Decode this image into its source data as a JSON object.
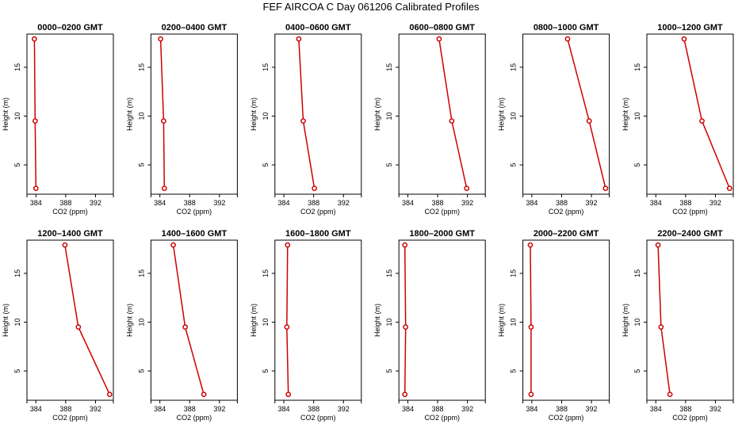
{
  "page_title": "FEF AIRCOA C  Day 061206  Calibrated Profiles",
  "colors": {
    "profile_line": "#cc0000",
    "axis": "#000000",
    "background": "#ffffff"
  },
  "chart_data": [
    {
      "type": "line",
      "title": "0000–0200 GMT",
      "xlabel": "CO2 (ppm)",
      "ylabel": "Height (m)",
      "xlim": [
        382.8,
        394.4
      ],
      "ylim": [
        2.0,
        18.4
      ],
      "xticks": [
        384,
        388,
        392
      ],
      "yticks": [
        5,
        10,
        15
      ],
      "series": [
        {
          "x": [
            383.8,
            383.9,
            384.0
          ],
          "y": [
            17.9,
            9.5,
            2.6
          ]
        }
      ]
    },
    {
      "type": "line",
      "title": "0200–0400 GMT",
      "xlabel": "CO2 (ppm)",
      "ylabel": "Height (m)",
      "xlim": [
        382.8,
        394.4
      ],
      "ylim": [
        2.0,
        18.4
      ],
      "xticks": [
        384,
        388,
        392
      ],
      "yticks": [
        5,
        10,
        15
      ],
      "series": [
        {
          "x": [
            384.1,
            384.5,
            384.6
          ],
          "y": [
            17.9,
            9.5,
            2.6
          ]
        }
      ]
    },
    {
      "type": "line",
      "title": "0400–0600 GMT",
      "xlabel": "CO2 (ppm)",
      "ylabel": "Height (m)",
      "xlim": [
        382.8,
        394.4
      ],
      "ylim": [
        2.0,
        18.4
      ],
      "xticks": [
        384,
        388,
        392
      ],
      "yticks": [
        5,
        10,
        15
      ],
      "series": [
        {
          "x": [
            386.0,
            386.6,
            388.1
          ],
          "y": [
            17.9,
            9.5,
            2.6
          ]
        }
      ]
    },
    {
      "type": "line",
      "title": "0600–0800 GMT",
      "xlabel": "CO2 (ppm)",
      "ylabel": "Height (m)",
      "xlim": [
        382.8,
        394.4
      ],
      "ylim": [
        2.0,
        18.4
      ],
      "xticks": [
        384,
        388,
        392
      ],
      "yticks": [
        5,
        10,
        15
      ],
      "series": [
        {
          "x": [
            388.2,
            389.9,
            391.9
          ],
          "y": [
            17.9,
            9.5,
            2.6
          ]
        }
      ]
    },
    {
      "type": "line",
      "title": "0800–1000 GMT",
      "xlabel": "CO2 (ppm)",
      "ylabel": "Height (m)",
      "xlim": [
        382.8,
        394.4
      ],
      "ylim": [
        2.0,
        18.4
      ],
      "xticks": [
        384,
        388,
        392
      ],
      "yticks": [
        5,
        10,
        15
      ],
      "series": [
        {
          "x": [
            388.8,
            391.7,
            393.9
          ],
          "y": [
            17.9,
            9.5,
            2.6
          ]
        }
      ]
    },
    {
      "type": "line",
      "title": "1000–1200 GMT",
      "xlabel": "CO2 (ppm)",
      "ylabel": "Height (m)",
      "xlim": [
        382.8,
        394.4
      ],
      "ylim": [
        2.0,
        18.4
      ],
      "xticks": [
        384,
        388,
        392
      ],
      "yticks": [
        5,
        10,
        15
      ],
      "series": [
        {
          "x": [
            387.8,
            390.2,
            393.9
          ],
          "y": [
            17.9,
            9.5,
            2.6
          ]
        }
      ]
    },
    {
      "type": "line",
      "title": "1200–1400 GMT",
      "xlabel": "CO2 (ppm)",
      "ylabel": "Height (m)",
      "xlim": [
        382.8,
        394.4
      ],
      "ylim": [
        2.0,
        18.4
      ],
      "xticks": [
        384,
        388,
        392
      ],
      "yticks": [
        5,
        10,
        15
      ],
      "series": [
        {
          "x": [
            387.9,
            389.7,
            393.9
          ],
          "y": [
            17.9,
            9.5,
            2.6
          ]
        }
      ]
    },
    {
      "type": "line",
      "title": "1400–1600 GMT",
      "xlabel": "CO2 (ppm)",
      "ylabel": "Height (m)",
      "xlim": [
        382.8,
        394.4
      ],
      "ylim": [
        2.0,
        18.4
      ],
      "xticks": [
        384,
        388,
        392
      ],
      "yticks": [
        5,
        10,
        15
      ],
      "series": [
        {
          "x": [
            385.8,
            387.4,
            389.9
          ],
          "y": [
            17.9,
            9.5,
            2.6
          ]
        }
      ]
    },
    {
      "type": "line",
      "title": "1600–1800 GMT",
      "xlabel": "CO2 (ppm)",
      "ylabel": "Height (m)",
      "xlim": [
        382.8,
        394.4
      ],
      "ylim": [
        2.0,
        18.4
      ],
      "xticks": [
        384,
        388,
        392
      ],
      "yticks": [
        5,
        10,
        15
      ],
      "series": [
        {
          "x": [
            384.5,
            384.4,
            384.6
          ],
          "y": [
            17.9,
            9.5,
            2.6
          ]
        }
      ]
    },
    {
      "type": "line",
      "title": "1800–2000 GMT",
      "xlabel": "CO2 (ppm)",
      "ylabel": "Height (m)",
      "xlim": [
        382.8,
        394.4
      ],
      "ylim": [
        2.0,
        18.4
      ],
      "xticks": [
        384,
        388,
        392
      ],
      "yticks": [
        5,
        10,
        15
      ],
      "series": [
        {
          "x": [
            383.6,
            383.7,
            383.6
          ],
          "y": [
            17.9,
            9.5,
            2.6
          ]
        }
      ]
    },
    {
      "type": "line",
      "title": "2000–2200 GMT",
      "xlabel": "CO2 (ppm)",
      "ylabel": "Height (m)",
      "xlim": [
        382.8,
        394.4
      ],
      "ylim": [
        2.0,
        18.4
      ],
      "xticks": [
        384,
        388,
        392
      ],
      "yticks": [
        5,
        10,
        15
      ],
      "series": [
        {
          "x": [
            383.8,
            383.9,
            383.9
          ],
          "y": [
            17.9,
            9.5,
            2.6
          ]
        }
      ]
    },
    {
      "type": "line",
      "title": "2200–2400 GMT",
      "xlabel": "CO2 (ppm)",
      "ylabel": "Height (m)",
      "xlim": [
        382.8,
        394.4
      ],
      "ylim": [
        2.0,
        18.4
      ],
      "xticks": [
        384,
        388,
        392
      ],
      "yticks": [
        5,
        10,
        15
      ],
      "series": [
        {
          "x": [
            384.3,
            384.7,
            385.9
          ],
          "y": [
            17.9,
            9.5,
            2.6
          ]
        }
      ]
    }
  ]
}
